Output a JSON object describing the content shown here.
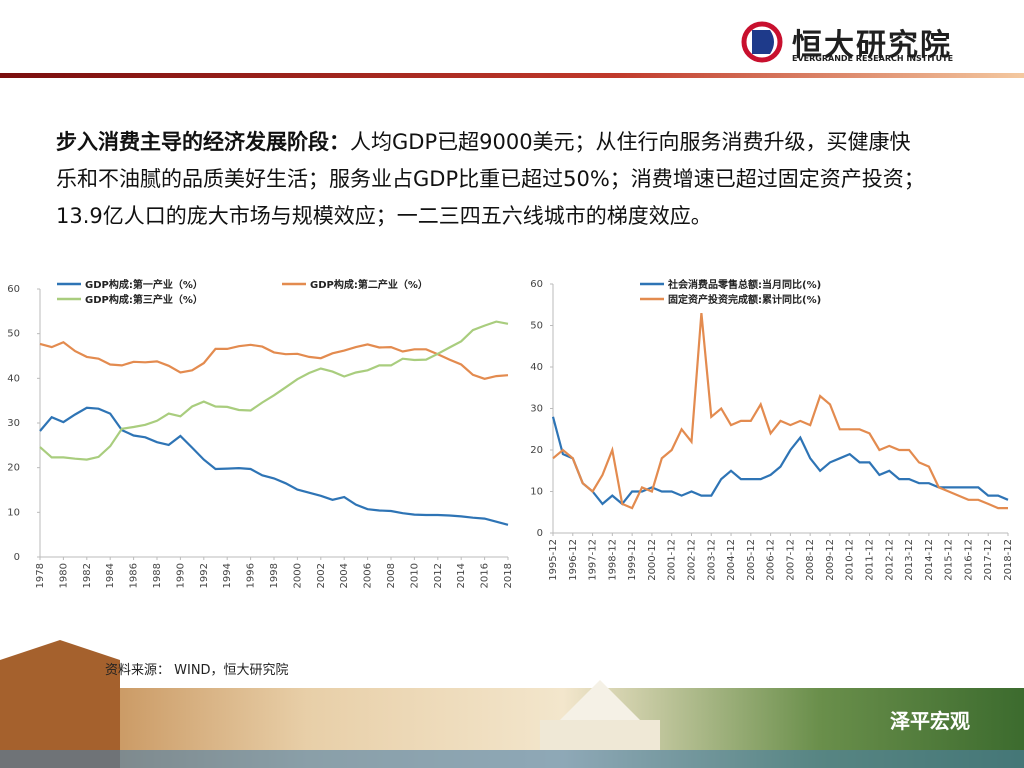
{
  "logo": {
    "name": "恒大研究院",
    "subtitle": "EVERGRANDE RESEARCH INSTITUTE"
  },
  "text": {
    "lead": "步入消费主导的经济发展阶段：",
    "lines": [
      "人均GDP已超9000美元；从住行向服务消费升级，买健康快",
      "乐和不油腻的品质美好生活；服务业占GDP比重已超过50%；消费增速已超过固定资产投资；",
      "13.9亿人口的庞大市场与规模效应；一二三四五六线城市的梯度效应。"
    ]
  },
  "chart_data": [
    {
      "type": "line",
      "x": [
        1978,
        1979,
        1980,
        1981,
        1982,
        1983,
        1984,
        1985,
        1986,
        1987,
        1988,
        1989,
        1990,
        1991,
        1992,
        1993,
        1994,
        1995,
        1996,
        1997,
        1998,
        1999,
        2000,
        2001,
        2002,
        2003,
        2004,
        2005,
        2006,
        2007,
        2008,
        2009,
        2010,
        2011,
        2012,
        2013,
        2014,
        2015,
        2016,
        2017,
        2018
      ],
      "xlim": [
        1978,
        2018
      ],
      "xticks": [
        1978,
        1980,
        1982,
        1984,
        1986,
        1988,
        1990,
        1992,
        1994,
        1996,
        1998,
        2000,
        2002,
        2004,
        2006,
        2008,
        2010,
        2012,
        2014,
        2016,
        2018
      ],
      "ylim": [
        0,
        60
      ],
      "yticks": [
        0,
        10,
        20,
        30,
        40,
        50,
        60
      ],
      "series": [
        {
          "name": "GDP构成:第一产业（%）",
          "color": "#2e74b5",
          "values": [
            28.2,
            31.3,
            30.2,
            31.9,
            33.4,
            33.2,
            32.1,
            28.4,
            27.2,
            26.8,
            25.7,
            25.1,
            27.1,
            24.5,
            21.8,
            19.7,
            19.8,
            19.9,
            19.7,
            18.3,
            17.6,
            16.5,
            15.1,
            14.4,
            13.7,
            12.8,
            13.4,
            11.7,
            10.7,
            10.4,
            10.3,
            9.8,
            9.5,
            9.4,
            9.4,
            9.3,
            9.1,
            8.8,
            8.6,
            7.9,
            7.2
          ]
        },
        {
          "name": "GDP构成:第二产业（%）",
          "color": "#e38b4f",
          "values": [
            47.7,
            47.0,
            48.1,
            46.1,
            44.8,
            44.4,
            43.1,
            42.9,
            43.7,
            43.6,
            43.8,
            42.8,
            41.3,
            41.8,
            43.4,
            46.6,
            46.6,
            47.2,
            47.5,
            47.1,
            45.8,
            45.4,
            45.5,
            44.8,
            44.5,
            45.6,
            46.2,
            47.0,
            47.6,
            46.9,
            47.0,
            46.0,
            46.5,
            46.5,
            45.4,
            44.2,
            43.1,
            40.8,
            39.9,
            40.5,
            40.7
          ]
        },
        {
          "name": "GDP构成:第三产业（%）",
          "color": "#a9cd7e",
          "values": [
            24.6,
            22.3,
            22.3,
            22.0,
            21.8,
            22.4,
            24.8,
            28.7,
            29.1,
            29.6,
            30.5,
            32.1,
            31.5,
            33.7,
            34.8,
            33.7,
            33.6,
            32.9,
            32.8,
            34.6,
            36.2,
            38.0,
            39.8,
            41.2,
            42.2,
            41.5,
            40.4,
            41.3,
            41.8,
            42.9,
            42.9,
            44.4,
            44.1,
            44.2,
            45.5,
            46.9,
            48.3,
            50.8,
            51.8,
            52.7,
            52.2
          ]
        }
      ]
    },
    {
      "type": "line",
      "categories": [
        "1995-12",
        null,
        "1996-12",
        null,
        "1997-12",
        null,
        "1998-12",
        null,
        "1999-12",
        null,
        "2000-12",
        null,
        "2001-12",
        null,
        "2002-12",
        null,
        "2003-12",
        null,
        "2004-12",
        null,
        "2005-12",
        null,
        "2006-12",
        null,
        "2007-12",
        null,
        "2008-12",
        null,
        "2009-12",
        null,
        "2010-12",
        null,
        "2011-12",
        null,
        "2012-12",
        null,
        "2013-12",
        null,
        "2014-12",
        null,
        "2015-12",
        null,
        "2016-12",
        null,
        "2017-12",
        null,
        "2018-12"
      ],
      "ylim": [
        0,
        60
      ],
      "yticks": [
        0,
        10,
        20,
        30,
        40,
        50,
        60
      ],
      "series": [
        {
          "name": "社会消费品零售总额:当月同比(%)",
          "color": "#2e74b5",
          "values": [
            28,
            19,
            18,
            12,
            10,
            7,
            9,
            7,
            10,
            10,
            11,
            10,
            10,
            9,
            10,
            9,
            9,
            13,
            15,
            13,
            13,
            13,
            14,
            16,
            20,
            23,
            18,
            15,
            17,
            18,
            19,
            17,
            17,
            14,
            15,
            13,
            13,
            12,
            12,
            11,
            11,
            11,
            11,
            11,
            9,
            9,
            8
          ]
        },
        {
          "name": "固定资产投资完成额:累计同比(%)",
          "color": "#e38b4f",
          "values": [
            18,
            20,
            18,
            12,
            10,
            14,
            20,
            7,
            6,
            11,
            10,
            18,
            20,
            25,
            22,
            53,
            28,
            30,
            26,
            27,
            27,
            31,
            24,
            27,
            26,
            27,
            26,
            33,
            31,
            25,
            25,
            25,
            24,
            20,
            21,
            20,
            20,
            17,
            16,
            11,
            10,
            9,
            8,
            8,
            7,
            6,
            6
          ]
        }
      ]
    }
  ],
  "source": "资料来源：  WIND，恒大研究院",
  "watermark": "泽平宏观"
}
